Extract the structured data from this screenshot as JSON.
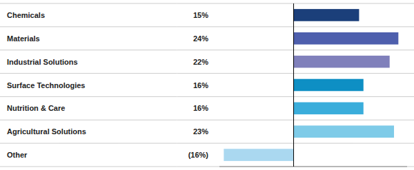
{
  "chart_data": {
    "type": "bar",
    "orientation": "horizontal",
    "categories": [
      "Chemicals",
      "Materials",
      "Industrial Solutions",
      "Surface Technologies",
      "Nutrition & Care",
      "Agricultural Solutions",
      "Other"
    ],
    "values": [
      15,
      24,
      22,
      16,
      16,
      23,
      -16
    ],
    "value_labels": [
      "15%",
      "24%",
      "22%",
      "16%",
      "16%",
      "23%",
      "(16%)"
    ],
    "colors": [
      "#1b3f7a",
      "#4e5fad",
      "#8080bb",
      "#0e8fc4",
      "#3aaddb",
      "#7ecbe8",
      "#aad8f0"
    ],
    "xlim": [
      -17,
      26
    ],
    "tick_labels": false,
    "data_labels": true
  }
}
